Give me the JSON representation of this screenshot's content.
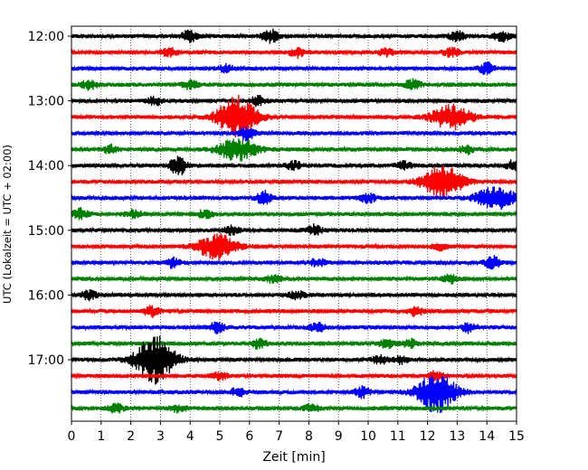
{
  "chart_data": {
    "type": "line",
    "subtype": "seismogram-helicorder",
    "xlabel": "Zeit  [min]",
    "ylabel": "UTC (Lokalzeit = UTC + 02:00)",
    "xlim": [
      0,
      15
    ],
    "x_ticks": [
      "0",
      "1",
      "2",
      "3",
      "4",
      "5",
      "6",
      "7",
      "8",
      "9",
      "10",
      "11",
      "12",
      "13",
      "14",
      "15"
    ],
    "y_tick_labels": [
      "12:00",
      "13:00",
      "14:00",
      "15:00",
      "16:00",
      "17:00"
    ],
    "vertical_grid": true,
    "grid_style": "dotted",
    "trace_colors": [
      "#000000",
      "#ff0000",
      "#0000ff",
      "#008000"
    ],
    "traces": [
      {
        "start": "12:00",
        "bursts": [
          [
            4,
            1.2
          ],
          [
            6.7,
            1.3
          ],
          [
            13,
            0.9
          ],
          [
            14.5,
            1.0
          ]
        ]
      },
      {
        "start": "12:15",
        "bursts": [
          [
            3.3,
            0.8
          ],
          [
            7.6,
            0.9
          ],
          [
            10.6,
            0.7
          ],
          [
            12.8,
            0.8
          ]
        ]
      },
      {
        "start": "12:30",
        "bursts": [
          [
            5.2,
            0.7
          ],
          [
            14,
            1.1
          ]
        ]
      },
      {
        "start": "12:45",
        "bursts": [
          [
            0.6,
            0.9
          ],
          [
            4,
            0.8
          ],
          [
            11.5,
            1.0
          ]
        ]
      },
      {
        "start": "13:00",
        "bursts": [
          [
            2.8,
            0.8
          ],
          [
            6.3,
            0.9
          ]
        ]
      },
      {
        "start": "13:15",
        "bursts": [
          [
            5.6,
            4.2
          ],
          [
            12.8,
            2.4
          ]
        ]
      },
      {
        "start": "13:30",
        "bursts": [
          [
            5.9,
            1.4
          ]
        ]
      },
      {
        "start": "13:45",
        "bursts": [
          [
            1.3,
            0.8
          ],
          [
            5.6,
            2.2
          ],
          [
            13.3,
            0.8
          ]
        ]
      },
      {
        "start": "14:00",
        "bursts": [
          [
            3.6,
            2.0
          ],
          [
            7.5,
            0.8
          ],
          [
            11.2,
            0.7
          ],
          [
            14.9,
            1.0
          ]
        ]
      },
      {
        "start": "14:15",
        "bursts": [
          [
            12.5,
            3.5
          ]
        ]
      },
      {
        "start": "14:30",
        "bursts": [
          [
            6.5,
            1.3
          ],
          [
            10,
            0.9
          ],
          [
            14.3,
            2.2
          ]
        ]
      },
      {
        "start": "14:45",
        "bursts": [
          [
            0.3,
            1.0
          ],
          [
            2.1,
            0.8
          ],
          [
            4.5,
            0.8
          ]
        ]
      },
      {
        "start": "15:00",
        "bursts": [
          [
            5.4,
            0.8
          ],
          [
            8.2,
            1.0
          ]
        ]
      },
      {
        "start": "15:15",
        "bursts": [
          [
            4.9,
            2.5
          ],
          [
            12.4,
            0.7
          ]
        ]
      },
      {
        "start": "15:30",
        "bursts": [
          [
            3.4,
            0.9
          ],
          [
            8.3,
            0.8
          ],
          [
            14.2,
            1.2
          ]
        ]
      },
      {
        "start": "15:45",
        "bursts": [
          [
            6.8,
            0.7
          ],
          [
            12.8,
            0.9
          ]
        ]
      },
      {
        "start": "16:00",
        "bursts": [
          [
            0.6,
            0.9
          ],
          [
            7.6,
            0.8
          ]
        ]
      },
      {
        "start": "16:15",
        "bursts": [
          [
            2.7,
            1.0
          ],
          [
            11.6,
            0.9
          ]
        ]
      },
      {
        "start": "16:30",
        "bursts": [
          [
            4.9,
            1.1
          ],
          [
            8.3,
            0.8
          ],
          [
            13.4,
            1.0
          ]
        ]
      },
      {
        "start": "16:45",
        "bursts": [
          [
            6.3,
            0.9
          ],
          [
            10.6,
            0.9
          ],
          [
            11.4,
            0.8
          ]
        ]
      },
      {
        "start": "17:00",
        "bursts": [
          [
            2.8,
            4.8
          ],
          [
            10.4,
            0.8
          ],
          [
            11.1,
            0.7
          ]
        ]
      },
      {
        "start": "17:15",
        "bursts": [
          [
            5,
            0.7
          ],
          [
            12.3,
            0.9
          ]
        ]
      },
      {
        "start": "17:30",
        "bursts": [
          [
            5.6,
            0.8
          ],
          [
            9.8,
            1.0
          ],
          [
            12.3,
            4.0
          ]
        ]
      },
      {
        "start": "17:45",
        "bursts": [
          [
            1.5,
            1.0
          ],
          [
            3.6,
            0.7
          ],
          [
            8.1,
            0.7
          ]
        ]
      }
    ]
  }
}
